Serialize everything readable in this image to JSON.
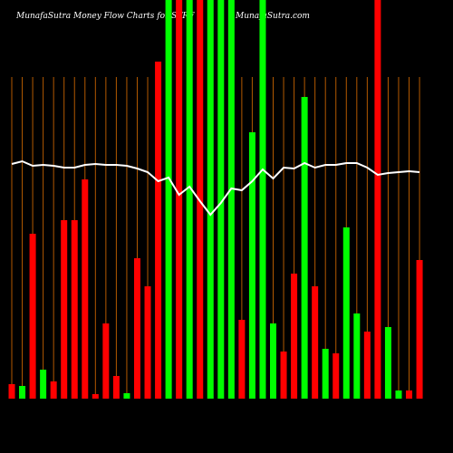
{
  "chart_data": {
    "type": "bar",
    "title": "MunafaSutra  Money Flow  Charts for STRF",
    "subtitle": "MunafaSutra.com",
    "categories": [
      null,
      null,
      null,
      null,
      null,
      null,
      null,
      null,
      null,
      null,
      null,
      null,
      null,
      null,
      null,
      null,
      null,
      null,
      null,
      null,
      null,
      null,
      null,
      null,
      null,
      null,
      null,
      null,
      null,
      null,
      null,
      null,
      null,
      null,
      null,
      null,
      null,
      null,
      null,
      null
    ],
    "values": [
      16,
      14,
      182,
      32,
      19,
      197,
      197,
      242,
      5,
      83,
      25,
      6,
      155,
      124,
      372,
      440,
      440,
      440,
      440,
      440,
      440,
      440,
      87,
      294,
      440,
      83,
      52,
      138,
      333,
      124,
      55,
      50,
      189,
      94,
      74,
      440,
      79,
      9,
      9,
      153
    ],
    "colors": [
      "#ff0000",
      "#00ff00",
      "#ff0000",
      "#00ff00",
      "#ff0000",
      "#ff0000",
      "#ff0000",
      "#ff0000",
      "#ff0000",
      "#ff0000",
      "#ff0000",
      "#00ff00",
      "#ff0000",
      "#ff0000",
      "#ff0000",
      "#00ff00",
      "#ff0000",
      "#00ff00",
      "#ff0000",
      "#00ff00",
      "#00ff00",
      "#00ff00",
      "#ff0000",
      "#00ff00",
      "#00ff00",
      "#00ff00",
      "#ff0000",
      "#ff0000",
      "#00ff00",
      "#ff0000",
      "#00ff00",
      "#ff0000",
      "#00ff00",
      "#00ff00",
      "#ff0000",
      "#ff0000",
      "#00ff00",
      "#00ff00",
      "#ff0000",
      "#ff0000"
    ],
    "line": {
      "color": "#ffffff",
      "values": [
        259,
        262,
        257,
        258,
        257,
        255,
        255,
        258,
        259,
        258,
        258,
        257,
        254,
        250,
        240,
        244,
        225,
        234,
        218,
        203,
        216,
        232,
        230,
        240,
        253,
        243,
        255,
        254,
        260,
        255,
        258,
        258,
        260,
        260,
        255,
        247,
        249,
        250,
        251,
        250
      ]
    },
    "ylim": [
      0,
      440
    ],
    "grid": true,
    "grid_color": "#b35900"
  }
}
